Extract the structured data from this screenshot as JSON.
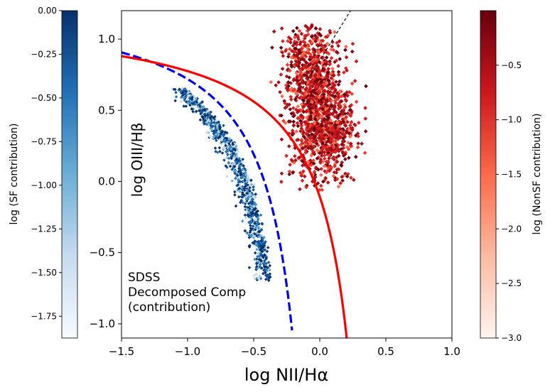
{
  "chart_data": {
    "type": "scatter",
    "xlabel": "log NII/Hα",
    "ylabel": "log OIII/Hβ",
    "xlim": [
      -1.5,
      1.0
    ],
    "ylim": [
      -1.1,
      1.2
    ],
    "xticks": [
      "−1.5",
      "−1.0",
      "−0.5",
      "0.0",
      "0.5",
      "1.0"
    ],
    "xtick_values": [
      -1.5,
      -1.0,
      -0.5,
      0.0,
      0.5,
      1.0
    ],
    "yticks": [
      "−1.0",
      "−0.5",
      "0.0",
      "0.5",
      "1.0"
    ],
    "ytick_values": [
      -1.0,
      -0.5,
      0.0,
      0.5,
      1.0
    ],
    "annotation": [
      "SDSS",
      "Decomposed Comp",
      "(contribution)"
    ],
    "curves": [
      {
        "name": "Kewley extreme starburst line",
        "style": "solid",
        "color": "#ff0000",
        "equation": "0.61/(x-0.47)+1.19"
      },
      {
        "name": "Kauffmann line",
        "style": "dashed",
        "color": "#0000ee",
        "equation": "0.61/(x-0.05)+1.3"
      },
      {
        "name": "Seyfert/LINER divider",
        "style": "dashed-thin",
        "color": "#000000",
        "equation": "1.5x+0.85"
      }
    ],
    "series": [
      {
        "name": "SF contribution",
        "colormap": "Blues",
        "description": "star-forming component points along the left branch",
        "x_range": [
          -1.0,
          -0.3
        ],
        "y_range": [
          -0.7,
          0.65
        ]
      },
      {
        "name": "NonSF contribution",
        "colormap": "Reds",
        "description": "non-star-forming component cloud",
        "x_range": [
          -0.4,
          0.35
        ],
        "y_range": [
          -0.05,
          1.1
        ]
      }
    ],
    "colorbars": [
      {
        "name": "SF",
        "label": "log (SF contribution)",
        "range": [
          -1.875,
          0.0
        ],
        "ticks": [
          "0.00",
          "−0.25",
          "−0.50",
          "−0.75",
          "−1.00",
          "−1.25",
          "−1.50",
          "−1.75"
        ],
        "tick_values": [
          0.0,
          -0.25,
          -0.5,
          -0.75,
          -1.0,
          -1.25,
          -1.5,
          -1.75
        ],
        "colors": [
          "#f7fbff",
          "#c6dbef",
          "#6baed6",
          "#2171b5",
          "#08306b"
        ]
      },
      {
        "name": "NonSF",
        "label": "log (NonSF contribution)",
        "range": [
          -3.0,
          0.0
        ],
        "ticks": [
          "−0.5",
          "−1.0",
          "−1.5",
          "−2.0",
          "−2.5",
          "−3.0"
        ],
        "tick_values": [
          -0.5,
          -1.0,
          -1.5,
          -2.0,
          -2.5,
          -3.0
        ],
        "colors": [
          "#fff5f0",
          "#fcbba1",
          "#fb6a4a",
          "#cb181d",
          "#67000d"
        ]
      }
    ]
  }
}
